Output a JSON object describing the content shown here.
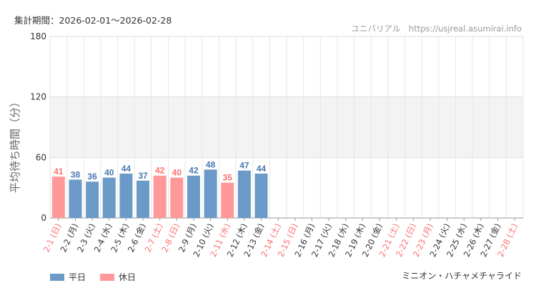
{
  "header": {
    "period_label": "集計期間：2026-02-01〜2026-02-28",
    "source": "ユニバリアル　https://usjreal.asumirai.info"
  },
  "footer": {
    "attraction_name": "ミニオン・ハチャメチャライド"
  },
  "colors": {
    "weekday": "#6b9ac8",
    "holiday": "#ff9999",
    "weekday_text": "#4a7ab0",
    "holiday_text": "#ff6f6f",
    "band": "#f3f3f3",
    "grid": "#e6e6e6"
  },
  "chart_data": {
    "type": "bar",
    "title": "",
    "xlabel": "",
    "ylabel": "平均待ち時間（分）",
    "ylim": [
      0,
      180
    ],
    "yticks": [
      0,
      60,
      120,
      180
    ],
    "band": [
      60,
      120
    ],
    "legend": {
      "position": "bottom-left",
      "entries": [
        {
          "key": "weekday",
          "label": "平日"
        },
        {
          "key": "holiday",
          "label": "休日"
        }
      ]
    },
    "categories": [
      "2-1 (日)",
      "2-2 (月)",
      "2-3 (火)",
      "2-4 (水)",
      "2-5 (木)",
      "2-6 (金)",
      "2-7 (土)",
      "2-8 (日)",
      "2-9 (月)",
      "2-10 (火)",
      "2-11 (水)",
      "2-12 (木)",
      "2-13 (金)",
      "2-14 (土)",
      "2-15 (日)",
      "2-16 (月)",
      "2-17 (火)",
      "2-18 (水)",
      "2-19 (木)",
      "2-20 (金)",
      "2-21 (土)",
      "2-22 (日)",
      "2-23 (月)",
      "2-24 (火)",
      "2-25 (水)",
      "2-26 (木)",
      "2-27 (金)",
      "2-28 (土)"
    ],
    "holiday": [
      true,
      false,
      false,
      false,
      false,
      false,
      true,
      true,
      false,
      false,
      true,
      false,
      false,
      true,
      true,
      false,
      false,
      false,
      false,
      false,
      true,
      true,
      true,
      false,
      false,
      false,
      false,
      true
    ],
    "values": [
      41,
      38,
      36,
      40,
      44,
      37,
      42,
      40,
      42,
      48,
      35,
      47,
      44,
      null,
      null,
      null,
      null,
      null,
      null,
      null,
      null,
      null,
      null,
      null,
      null,
      null,
      null,
      null
    ]
  }
}
